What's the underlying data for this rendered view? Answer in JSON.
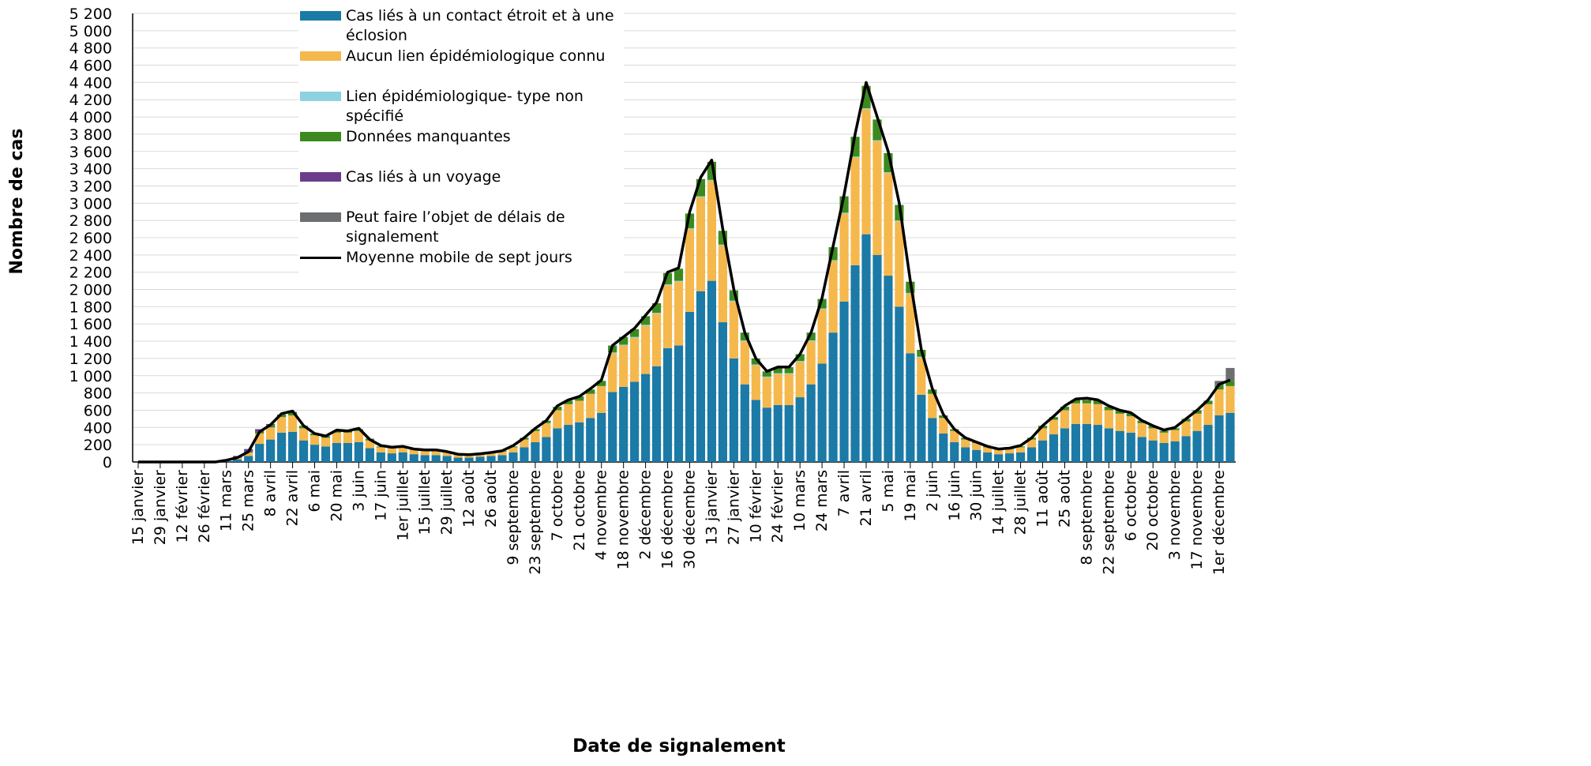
{
  "chart_data": {
    "type": "stacked-bar",
    "x_label": "Date de signalement",
    "y_label": "Nombre de cas",
    "categories": [
      "15 janvier",
      null,
      "29 janvier",
      null,
      "12 février",
      null,
      "26 février",
      null,
      "11 mars",
      null,
      "25 mars",
      null,
      "8 avril",
      null,
      "22 avril",
      null,
      "6 mai",
      null,
      "20 mai",
      null,
      "3 juin",
      null,
      "17 juin",
      null,
      "1er juillet",
      null,
      "15 juillet",
      null,
      "29 juillet",
      null,
      "12 août",
      null,
      "26 août",
      null,
      "9 septembre",
      null,
      "23 septembre",
      null,
      "7 octobre",
      null,
      "21 octobre",
      null,
      "4 novembre",
      null,
      "18 novembre",
      null,
      "2 décembre",
      null,
      "16 décembre",
      null,
      "30 décembre",
      null,
      "13 janvier",
      null,
      "27 janvier",
      null,
      "10 février",
      null,
      "24 février",
      null,
      "10 mars",
      null,
      "24 mars",
      null,
      "7 avril",
      null,
      "21 avril",
      null,
      "5 mai",
      null,
      "19 mai",
      null,
      "2 juin",
      null,
      "16 juin",
      null,
      "30 juin",
      null,
      "14 juillet",
      null,
      "28 juillet",
      null,
      "11 août",
      null,
      "25 août",
      null,
      "8 septembre",
      null,
      "22 septembre",
      null,
      "6 octobre",
      null,
      "20 octobre",
      null,
      "3 novembre",
      null,
      "17 novembre",
      null,
      "1er décembre",
      null
    ],
    "series": [
      {
        "name": "Cas liés à un contact étroit et à une éclosion",
        "color": "#1b7aa6",
        "values": [
          0,
          0,
          0,
          0,
          0,
          0,
          0,
          0,
          10,
          30,
          70,
          210,
          260,
          340,
          350,
          250,
          200,
          180,
          220,
          220,
          230,
          160,
          110,
          100,
          110,
          90,
          80,
          80,
          70,
          50,
          50,
          60,
          70,
          80,
          110,
          170,
          230,
          290,
          390,
          430,
          460,
          510,
          570,
          810,
          870,
          930,
          1020,
          1110,
          1320,
          1350,
          1740,
          1980,
          2100,
          1620,
          1200,
          900,
          720,
          630,
          660,
          660,
          750,
          900,
          1140,
          1500,
          1860,
          2280,
          2640,
          2400,
          2160,
          1800,
          1260,
          780,
          510,
          330,
          230,
          170,
          140,
          110,
          90,
          100,
          110,
          170,
          250,
          320,
          390,
          440,
          440,
          430,
          390,
          360,
          340,
          290,
          250,
          220,
          240,
          300,
          360,
          430,
          540,
          570
        ]
      },
      {
        "name": "Aucun lien épidémiologique connu",
        "color": "#f5b84c",
        "values": [
          0,
          0,
          0,
          0,
          0,
          0,
          0,
          0,
          10,
          20,
          40,
          120,
          140,
          180,
          190,
          140,
          110,
          100,
          120,
          120,
          130,
          90,
          60,
          60,
          60,
          50,
          50,
          50,
          40,
          30,
          30,
          30,
          40,
          40,
          60,
          90,
          130,
          160,
          210,
          240,
          250,
          280,
          310,
          450,
          480,
          510,
          560,
          610,
          730,
          740,
          960,
          1090,
          1160,
          890,
          660,
          500,
          400,
          350,
          360,
          360,
          410,
          500,
          630,
          830,
          1020,
          1250,
          1450,
          1320,
          1190,
          990,
          690,
          430,
          280,
          180,
          130,
          90,
          80,
          60,
          50,
          50,
          60,
          90,
          140,
          170,
          210,
          240,
          240,
          240,
          210,
          200,
          190,
          160,
          140,
          120,
          130,
          170,
          200,
          240,
          300,
          310
        ]
      },
      {
        "name": "Lien épidémiologique- type non spécifié",
        "color": "#8ed2df",
        "values": [
          0,
          0,
          0,
          0,
          0,
          0,
          0,
          0,
          0,
          0,
          0,
          0,
          0,
          0,
          0,
          0,
          0,
          0,
          0,
          0,
          0,
          0,
          0,
          0,
          0,
          0,
          0,
          0,
          0,
          0,
          0,
          0,
          0,
          0,
          0,
          0,
          0,
          0,
          0,
          0,
          0,
          0,
          0,
          10,
          10,
          10,
          10,
          10,
          10,
          10,
          10,
          10,
          10,
          10,
          10,
          10,
          10,
          10,
          10,
          10,
          10,
          10,
          10,
          10,
          10,
          10,
          10,
          10,
          10,
          10,
          10,
          10,
          0,
          0,
          0,
          0,
          0,
          0,
          0,
          0,
          0,
          0,
          0,
          0,
          0,
          0,
          0,
          0,
          0,
          0,
          0,
          0,
          0,
          0,
          0,
          0,
          0,
          0,
          0,
          0
        ]
      },
      {
        "name": "Données manquantes",
        "color": "#3c8a1f",
        "values": [
          0,
          0,
          0,
          0,
          0,
          0,
          0,
          0,
          0,
          0,
          10,
          20,
          30,
          30,
          40,
          30,
          20,
          20,
          20,
          20,
          20,
          20,
          10,
          10,
          10,
          10,
          10,
          10,
          10,
          10,
          0,
          0,
          0,
          10,
          10,
          20,
          20,
          30,
          40,
          40,
          50,
          50,
          60,
          80,
          90,
          90,
          100,
          110,
          130,
          140,
          170,
          200,
          210,
          160,
          120,
          90,
          70,
          60,
          70,
          70,
          80,
          90,
          110,
          150,
          190,
          230,
          260,
          240,
          220,
          180,
          130,
          80,
          50,
          30,
          20,
          20,
          10,
          10,
          10,
          10,
          10,
          20,
          30,
          30,
          40,
          40,
          40,
          40,
          40,
          40,
          30,
          30,
          30,
          20,
          20,
          30,
          40,
          40,
          50,
          60
        ]
      },
      {
        "name": "Cas liés à un voyage",
        "color": "#6a3d8c",
        "values": [
          0,
          0,
          0,
          0,
          0,
          0,
          0,
          0,
          10,
          20,
          30,
          30,
          10,
          0,
          0,
          0,
          0,
          0,
          0,
          0,
          0,
          0,
          0,
          0,
          0,
          0,
          0,
          0,
          0,
          0,
          0,
          0,
          0,
          0,
          0,
          0,
          0,
          0,
          0,
          0,
          0,
          0,
          0,
          0,
          0,
          0,
          0,
          0,
          0,
          0,
          0,
          0,
          0,
          0,
          0,
          0,
          0,
          0,
          0,
          0,
          0,
          0,
          0,
          0,
          0,
          0,
          0,
          0,
          0,
          0,
          0,
          0,
          0,
          0,
          0,
          0,
          0,
          0,
          0,
          0,
          0,
          0,
          0,
          0,
          0,
          0,
          0,
          0,
          0,
          0,
          0,
          0,
          0,
          0,
          0,
          0,
          0,
          0,
          0,
          0
        ]
      },
      {
        "name": "Peut faire l’objet de délais de signalement",
        "color": "#6d6e70",
        "values": [
          0,
          0,
          0,
          0,
          0,
          0,
          0,
          0,
          0,
          0,
          0,
          0,
          0,
          0,
          0,
          0,
          0,
          0,
          0,
          0,
          0,
          0,
          0,
          0,
          0,
          0,
          0,
          0,
          0,
          0,
          0,
          0,
          0,
          0,
          0,
          0,
          0,
          0,
          0,
          0,
          0,
          0,
          0,
          0,
          0,
          0,
          0,
          0,
          0,
          0,
          0,
          0,
          0,
          0,
          0,
          0,
          0,
          0,
          0,
          0,
          0,
          0,
          0,
          0,
          0,
          0,
          0,
          0,
          0,
          0,
          0,
          0,
          0,
          0,
          0,
          0,
          0,
          0,
          0,
          0,
          0,
          0,
          0,
          0,
          0,
          0,
          0,
          0,
          0,
          0,
          0,
          0,
          0,
          0,
          0,
          0,
          0,
          0,
          50,
          150
        ]
      }
    ],
    "line": {
      "name": "Moyenne mobile de sept jours",
      "color": "#000000",
      "values": [
        0,
        0,
        0,
        0,
        0,
        0,
        0,
        0,
        20,
        50,
        120,
        350,
        430,
        560,
        590,
        420,
        330,
        300,
        370,
        360,
        390,
        260,
        190,
        170,
        180,
        150,
        140,
        140,
        120,
        90,
        85,
        95,
        110,
        130,
        190,
        280,
        390,
        480,
        650,
        720,
        760,
        850,
        950,
        1350,
        1450,
        1550,
        1700,
        1850,
        2200,
        2250,
        2900,
        3300,
        3500,
        2700,
        2000,
        1500,
        1200,
        1050,
        1100,
        1100,
        1250,
        1500,
        1900,
        2500,
        3100,
        3800,
        4400,
        4000,
        3600,
        3000,
        2100,
        1300,
        850,
        550,
        380,
        280,
        230,
        180,
        150,
        160,
        190,
        280,
        420,
        530,
        650,
        730,
        740,
        720,
        650,
        600,
        570,
        480,
        420,
        370,
        400,
        500,
        600,
        720,
        900,
        950
      ]
    },
    "ylim": [
      0,
      5200
    ],
    "yticks": [
      0,
      200,
      400,
      600,
      800,
      {
        "value": 1000,
        "label": "1 000"
      },
      {
        "value": 1200,
        "label": "1 200"
      },
      {
        "value": 1400,
        "label": "1 400"
      },
      {
        "value": 1600,
        "label": "1 600"
      },
      {
        "value": 1800,
        "label": "1 800"
      },
      {
        "value": 2000,
        "label": "2 000"
      },
      {
        "value": 2200,
        "label": "2 200"
      },
      {
        "value": 2400,
        "label": "2 400"
      },
      {
        "value": 2600,
        "label": "2 600"
      },
      {
        "value": 2800,
        "label": "2 800"
      },
      {
        "value": 3000,
        "label": "3 000"
      },
      {
        "value": 3200,
        "label": "3 200"
      },
      {
        "value": 3400,
        "label": "3 400"
      },
      {
        "value": 3600,
        "label": "3 600"
      },
      {
        "value": 3800,
        "label": "3 800"
      },
      {
        "value": 4000,
        "label": "4 000"
      },
      {
        "value": 4200,
        "label": "4 200"
      },
      {
        "value": 4400,
        "label": "4 400"
      },
      {
        "value": 4600,
        "label": "4 600"
      },
      {
        "value": 4800,
        "label": "4 800"
      },
      {
        "value": 5000,
        "label": "5 000"
      },
      {
        "value": 5200,
        "label": "5 200"
      }
    ],
    "grid": true,
    "legend": "top-left"
  }
}
